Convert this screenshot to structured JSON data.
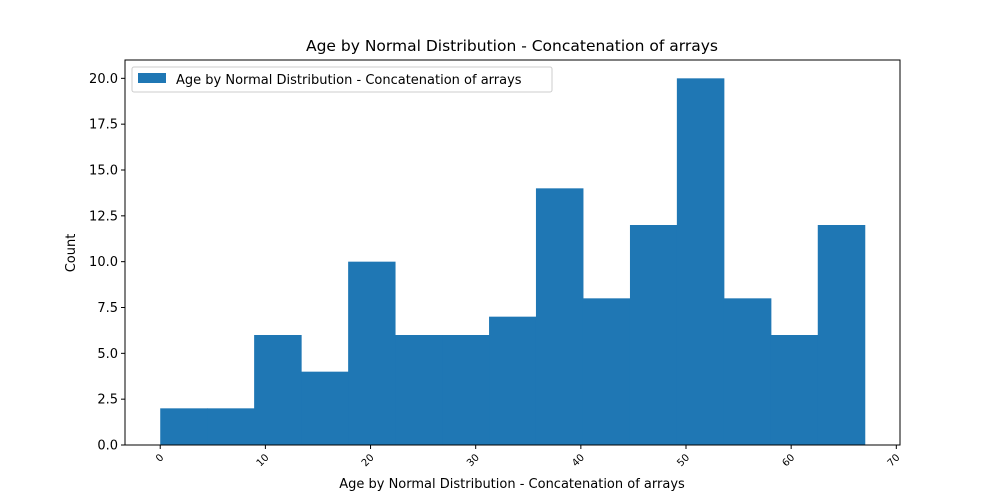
{
  "chart_data": {
    "type": "bar",
    "title": "Age by Normal Distribution - Concatenation of arrays",
    "xlabel": "Age by Normal Distribution - Concatenation of arrays",
    "ylabel": "Count",
    "xlim": [
      -3.35,
      70.35
    ],
    "ylim": [
      0,
      21
    ],
    "xticks": [
      0,
      10,
      20,
      30,
      40,
      50,
      60,
      70
    ],
    "yticks": [
      0.0,
      2.5,
      5.0,
      7.5,
      10.0,
      12.5,
      15.0,
      17.5,
      20.0
    ],
    "ytick_labels": [
      "0.0",
      "2.5",
      "5.0",
      "7.5",
      "10.0",
      "12.5",
      "15.0",
      "17.5",
      "20.0"
    ],
    "bin_edges": [
      0,
      4.47,
      8.93,
      13.4,
      17.87,
      22.33,
      26.8,
      31.27,
      35.73,
      40.2,
      44.67,
      49.13,
      53.6,
      58.07,
      62.53,
      67.0
    ],
    "counts": [
      2,
      2,
      6,
      4,
      10,
      6,
      6,
      7,
      14,
      8,
      12,
      20,
      8,
      6,
      12
    ],
    "series": [
      {
        "name": "Age by Normal Distribution - Concatenation of arrays",
        "color": "#1f77b4"
      }
    ],
    "legend": {
      "placement": "upper-left"
    },
    "grid": false
  }
}
